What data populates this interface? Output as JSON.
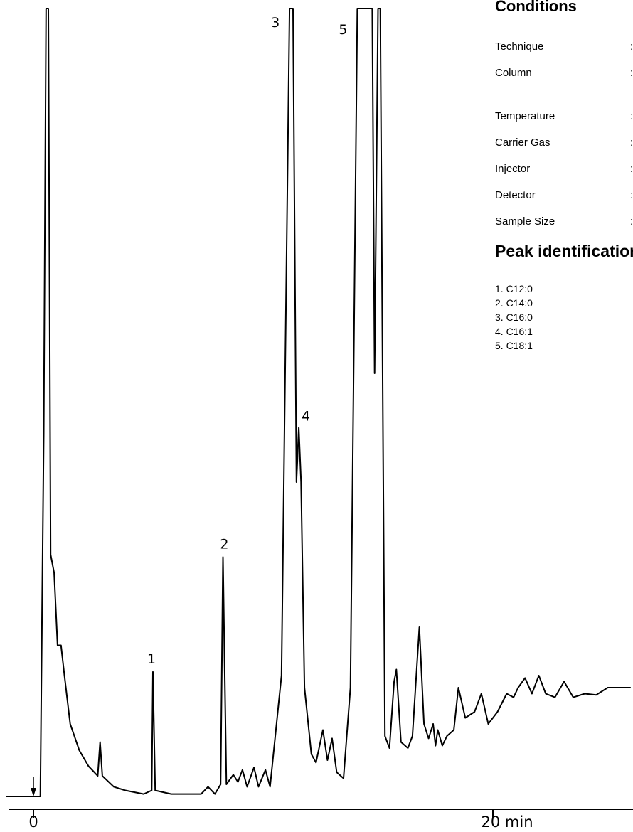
{
  "chart_data": {
    "type": "line",
    "title": "",
    "xlabel": "",
    "ylabel": "",
    "x_unit": "min",
    "xlim": [
      -1.2,
      26
    ],
    "ticks": [
      {
        "value": 0,
        "label": "0"
      },
      {
        "value": 20,
        "label": "20 min"
      }
    ],
    "series": [
      {
        "values": [
          [
            -1.2,
            0.0
          ],
          [
            0.3,
            0.0
          ],
          [
            0.45,
            3.0
          ],
          [
            0.55,
            20
          ],
          [
            0.65,
            20
          ],
          [
            0.75,
            2.0
          ],
          [
            0.9,
            1.85
          ],
          [
            1.05,
            1.25
          ],
          [
            1.2,
            1.25
          ],
          [
            1.35,
            1.0
          ],
          [
            1.6,
            0.6
          ],
          [
            2.0,
            0.38
          ],
          [
            2.4,
            0.25
          ],
          [
            2.8,
            0.17
          ],
          [
            2.9,
            0.45
          ],
          [
            3.0,
            0.17
          ],
          [
            3.5,
            0.08
          ],
          [
            4.0,
            0.05
          ],
          [
            4.8,
            0.02
          ],
          [
            5.15,
            0.05
          ],
          [
            5.2,
            1.03
          ],
          [
            5.3,
            0.05
          ],
          [
            6.0,
            0.02
          ],
          [
            7.3,
            0.02
          ],
          [
            7.6,
            0.08
          ],
          [
            7.9,
            0.02
          ],
          [
            8.15,
            0.1
          ],
          [
            8.25,
            1.98
          ],
          [
            8.4,
            0.1
          ],
          [
            8.7,
            0.18
          ],
          [
            8.9,
            0.12
          ],
          [
            9.1,
            0.22
          ],
          [
            9.3,
            0.08
          ],
          [
            9.6,
            0.24
          ],
          [
            9.8,
            0.08
          ],
          [
            10.1,
            0.22
          ],
          [
            10.3,
            0.08
          ],
          [
            10.8,
            1.0
          ],
          [
            11.15,
            20
          ],
          [
            11.3,
            20
          ],
          [
            11.45,
            2.6
          ],
          [
            11.55,
            3.05
          ],
          [
            11.65,
            2.6
          ],
          [
            11.8,
            0.9
          ],
          [
            12.1,
            0.35
          ],
          [
            12.3,
            0.28
          ],
          [
            12.6,
            0.55
          ],
          [
            12.8,
            0.3
          ],
          [
            13.0,
            0.48
          ],
          [
            13.2,
            0.2
          ],
          [
            13.5,
            0.15
          ],
          [
            13.8,
            0.9
          ],
          [
            14.1,
            20
          ],
          [
            14.3,
            20
          ],
          [
            14.45,
            7.0
          ],
          [
            14.6,
            20
          ],
          [
            14.75,
            20
          ],
          [
            14.85,
            3.5
          ],
          [
            15.0,
            20
          ],
          [
            15.1,
            20
          ],
          [
            15.3,
            0.5
          ],
          [
            15.5,
            0.4
          ],
          [
            15.7,
            0.95
          ],
          [
            15.8,
            1.05
          ],
          [
            16.0,
            0.45
          ],
          [
            16.3,
            0.4
          ],
          [
            16.5,
            0.5
          ],
          [
            16.8,
            1.4
          ],
          [
            17.0,
            0.6
          ],
          [
            17.2,
            0.48
          ],
          [
            17.4,
            0.6
          ],
          [
            17.5,
            0.42
          ],
          [
            17.6,
            0.55
          ],
          [
            17.8,
            0.42
          ],
          [
            18.0,
            0.5
          ],
          [
            18.3,
            0.55
          ],
          [
            18.5,
            0.9
          ],
          [
            18.8,
            0.65
          ],
          [
            19.2,
            0.7
          ],
          [
            19.5,
            0.85
          ],
          [
            19.8,
            0.6
          ],
          [
            20.2,
            0.7
          ],
          [
            20.6,
            0.85
          ],
          [
            20.9,
            0.82
          ],
          [
            21.1,
            0.9
          ],
          [
            21.4,
            0.98
          ],
          [
            21.7,
            0.85
          ],
          [
            22.0,
            1.0
          ],
          [
            22.3,
            0.85
          ],
          [
            22.7,
            0.82
          ],
          [
            23.1,
            0.95
          ],
          [
            23.5,
            0.82
          ],
          [
            24.0,
            0.85
          ],
          [
            24.5,
            0.84
          ],
          [
            25.0,
            0.9
          ],
          [
            26.0,
            0.9
          ]
        ]
      }
    ],
    "peak_labels": [
      {
        "label": "1",
        "x": 5.2,
        "y": 1.03
      },
      {
        "label": "2",
        "x": 8.25,
        "y": 1.98
      },
      {
        "label": "3",
        "x": 11.15,
        "y": 20
      },
      {
        "label": "4",
        "x": 11.55,
        "y": 3.05
      },
      {
        "label": "5",
        "x": 14.1,
        "y": 20
      }
    ],
    "injection_marker": {
      "x": 0
    }
  },
  "conditions": {
    "title": "Conditions",
    "rows": [
      {
        "label": "Technique",
        "sep": ":"
      },
      {
        "label": "Column",
        "sep": ":"
      },
      {
        "label": "Temperature",
        "sep": ":"
      },
      {
        "label": "Carrier Gas",
        "sep": ":"
      },
      {
        "label": "Injector",
        "sep": ":"
      },
      {
        "label": "Detector",
        "sep": ":"
      },
      {
        "label": "Sample Size",
        "sep": ":"
      }
    ]
  },
  "peaks": {
    "title": "Peak identification",
    "items": [
      "1.  C12:0",
      "2.  C14:0",
      "3.  C16:0",
      "4.  C16:1",
      "5.  C18:1"
    ]
  }
}
